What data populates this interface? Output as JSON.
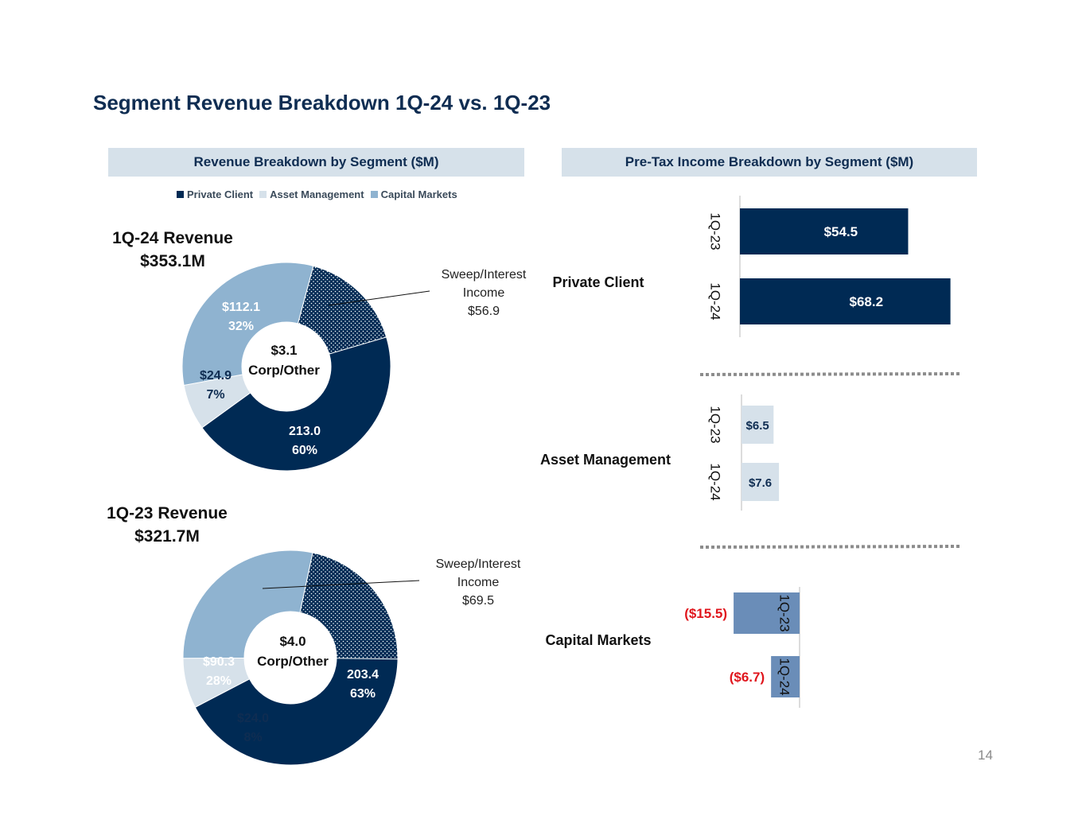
{
  "page": {
    "title": "Segment Revenue Breakdown 1Q-24 vs. 1Q-23",
    "page_number": "14"
  },
  "colors": {
    "private_client": "#002a54",
    "asset_management": "#d6e1ea",
    "capital_markets": "#8fb3d0",
    "capital_markets_bar": "#6a8db8",
    "header_bg": "#d6e1ea",
    "title": "#0f2d52",
    "negative": "#e0161d",
    "divider": "#8c8c8c"
  },
  "chart_data": [
    {
      "type": "pie",
      "variant": "donut",
      "title": "Revenue Breakdown by Segment ($M)",
      "legend": [
        "Private Client",
        "Asset Management",
        "Capital Markets"
      ],
      "chart_title_line1": "1Q-24 Revenue",
      "chart_title_line2": "$353.1M",
      "center_value": "$3.1",
      "center_label": "Corp/Other",
      "slices": [
        {
          "name": "Private Client",
          "value": 213.0,
          "value_label": "213.0",
          "pct_label": "60%"
        },
        {
          "name": "Asset Management",
          "value": 24.9,
          "value_label": "$24.9",
          "pct_label": "7%"
        },
        {
          "name": "Capital Markets",
          "value": 112.1,
          "value_label": "$112.1",
          "pct_label": "32%"
        }
      ],
      "sub_slice": {
        "name": "Sweep/Interest Income",
        "value": 56.9,
        "label_line1": "Sweep/Interest",
        "label_line2": "Income",
        "label_line3": "$56.9"
      }
    },
    {
      "type": "pie",
      "variant": "donut",
      "chart_title_line1": "1Q-23 Revenue",
      "chart_title_line2": "$321.7M",
      "center_value": "$4.0",
      "center_label": "Corp/Other",
      "slices": [
        {
          "name": "Private Client",
          "value": 203.4,
          "value_label": "203.4",
          "pct_label": "63%"
        },
        {
          "name": "Asset Management",
          "value": 24.0,
          "value_label": "$24.0",
          "pct_label": "8%"
        },
        {
          "name": "Capital Markets",
          "value": 90.3,
          "value_label": "$90.3",
          "pct_label": "28%"
        }
      ],
      "sub_slice": {
        "name": "Sweep/Interest Income",
        "value": 69.5,
        "label_line1": "Sweep/Interest",
        "label_line2": "Income",
        "label_line3": "$69.5"
      }
    },
    {
      "type": "bar",
      "orientation": "horizontal",
      "title": "Pre-Tax Income Breakdown by Segment ($M)",
      "groups": [
        {
          "name": "Private Client",
          "bars": [
            {
              "period": "1Q-23",
              "value": 54.5,
              "label": "$54.5"
            },
            {
              "period": "1Q-24",
              "value": 68.2,
              "label": "$68.2"
            }
          ]
        },
        {
          "name": "Asset Management",
          "bars": [
            {
              "period": "1Q-23",
              "value": 6.5,
              "label": "$6.5"
            },
            {
              "period": "1Q-24",
              "value": 7.6,
              "label": "$7.6"
            }
          ]
        },
        {
          "name": "Capital Markets",
          "bars": [
            {
              "period": "1Q-23",
              "value": -15.5,
              "label": "($15.5)"
            },
            {
              "period": "1Q-24",
              "value": -6.7,
              "label": "($6.7)"
            }
          ]
        }
      ]
    }
  ]
}
